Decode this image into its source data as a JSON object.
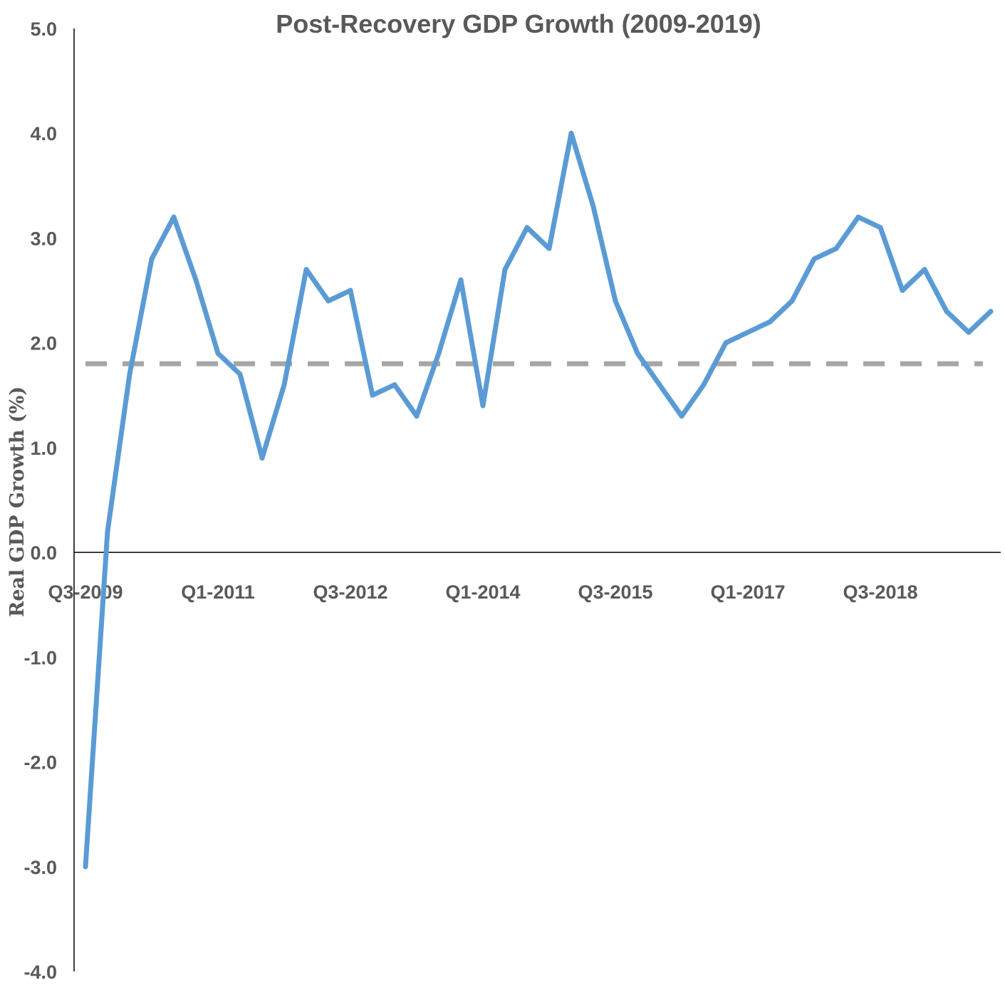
{
  "chart_data": {
    "type": "line",
    "title": "Post-Recovery GDP Growth  (2009-2019)",
    "xlabel": "",
    "ylabel": "Real GDP Growth (%)",
    "ylim": [
      -4.0,
      5.0
    ],
    "yticks": [
      "-4.0",
      "-3.0",
      "-2.0",
      "-1.0",
      "0.0",
      "1.0",
      "2.0",
      "3.0",
      "4.0",
      "5.0"
    ],
    "x": [
      "Q3-2009",
      "Q4-2009",
      "Q1-2010",
      "Q2-2010",
      "Q3-2010",
      "Q4-2010",
      "Q1-2011",
      "Q2-2011",
      "Q3-2011",
      "Q4-2011",
      "Q1-2012",
      "Q2-2012",
      "Q3-2012",
      "Q4-2012",
      "Q1-2013",
      "Q2-2013",
      "Q3-2013",
      "Q4-2013",
      "Q1-2014",
      "Q2-2014",
      "Q3-2014",
      "Q4-2014",
      "Q1-2015",
      "Q2-2015",
      "Q3-2015",
      "Q4-2015",
      "Q1-2016",
      "Q2-2016",
      "Q3-2016",
      "Q4-2016",
      "Q1-2017",
      "Q2-2017",
      "Q3-2017",
      "Q4-2017",
      "Q1-2018",
      "Q2-2018",
      "Q3-2018",
      "Q4-2018",
      "Q1-2019",
      "Q2-2019",
      "Q3-2019",
      "Q4-2019"
    ],
    "xtick_labels": [
      "Q3-2009",
      "Q1-2011",
      "Q3-2012",
      "Q1-2014",
      "Q3-2015",
      "Q1-2017",
      "Q3-2018"
    ],
    "series": [
      {
        "name": "",
        "color": "#5b9bd5",
        "values": [
          -3.0,
          0.2,
          1.7,
          2.8,
          3.2,
          2.6,
          1.9,
          1.7,
          0.9,
          1.6,
          2.7,
          2.4,
          2.5,
          1.5,
          1.6,
          1.3,
          1.9,
          2.6,
          1.4,
          2.7,
          3.1,
          2.9,
          4.0,
          3.3,
          2.4,
          1.9,
          1.6,
          1.3,
          1.6,
          2.0,
          2.1,
          2.2,
          2.4,
          2.8,
          2.9,
          3.2,
          3.1,
          2.5,
          2.7,
          2.3,
          2.1,
          2.3
        ]
      }
    ],
    "reference_line": {
      "value": 1.8,
      "color": "#a6a6a6",
      "style": "dashed"
    },
    "grid": false,
    "legend": "none"
  }
}
